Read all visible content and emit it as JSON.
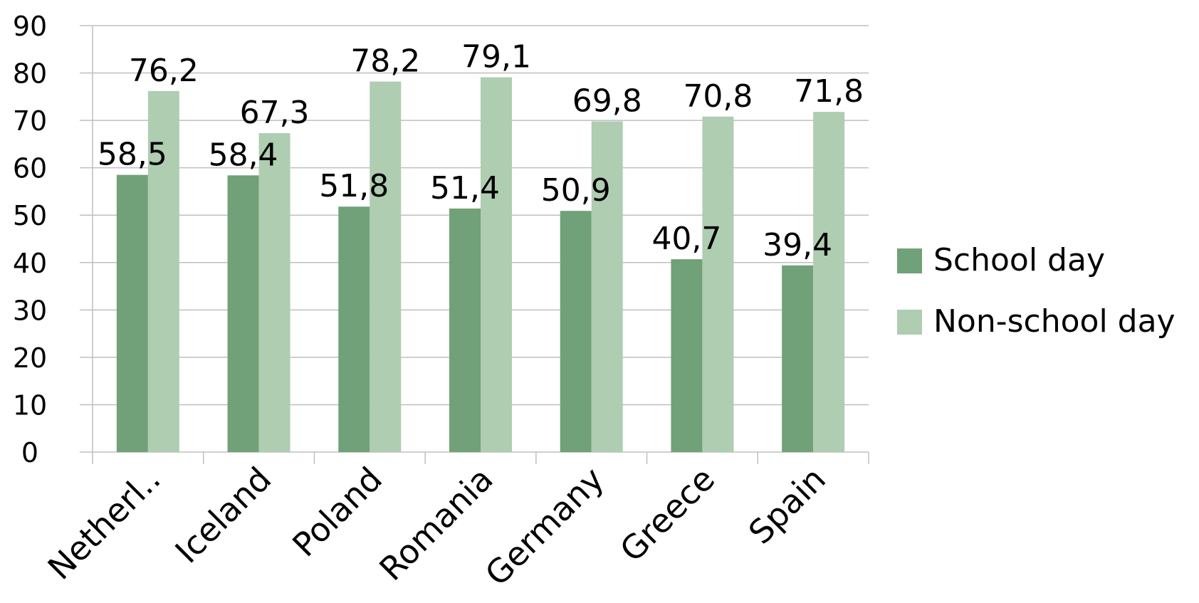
{
  "chart_data": {
    "type": "bar",
    "categories": [
      "Netherl..",
      "Iceland",
      "Poland",
      "Romania",
      "Germany",
      "Greece",
      "Spain"
    ],
    "series": [
      {
        "name": "School day",
        "color": "#70A178",
        "values": [
          58.5,
          58.4,
          51.8,
          51.4,
          50.9,
          40.7,
          39.4
        ],
        "labels": [
          "58,5",
          "58,4",
          "51,8",
          "51,4",
          "50,9",
          "40,7",
          "39,4"
        ]
      },
      {
        "name": "Non-school day",
        "color": "#AFCDB1",
        "values": [
          76.2,
          67.3,
          78.2,
          79.1,
          69.8,
          70.8,
          71.8
        ],
        "labels": [
          "76,2",
          "67,3",
          "78,2",
          "79,1",
          "69,8",
          "70,8",
          "71,8"
        ]
      }
    ],
    "y_ticks": [
      "0",
      "10",
      "20",
      "30",
      "40",
      "50",
      "60",
      "70",
      "80",
      "90"
    ],
    "ylim": [
      0,
      90
    ],
    "grid": true,
    "gridline_color": "#BFBFBF",
    "legend_position": "right"
  }
}
